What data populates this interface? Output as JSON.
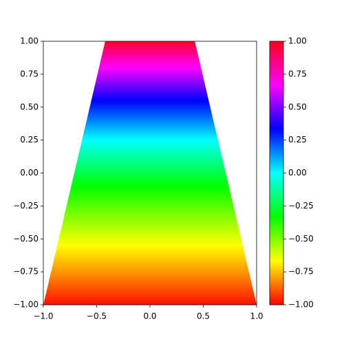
{
  "chart_data": {
    "type": "filled_polygon",
    "colormap": "hsv",
    "polygon": {
      "x": [
        -1,
        -0.42,
        0.42,
        1
      ],
      "y": [
        -1,
        1,
        1,
        -1
      ]
    },
    "gradient": [
      {
        "y": -1,
        "color": "#ff1000"
      },
      {
        "y": -0.55,
        "color": "#ffff00"
      },
      {
        "y": -0.1,
        "color": "#00ff00"
      },
      {
        "y": 0.25,
        "color": "#00ffff"
      },
      {
        "y": 0.55,
        "color": "#0000ff"
      },
      {
        "y": 0.8,
        "color": "#ff00ff"
      },
      {
        "y": 1,
        "color": "#ff0028"
      }
    ],
    "xlim": [
      -1,
      1
    ],
    "ylim": [
      -1,
      1
    ],
    "xticks": [
      {
        "value": -1,
        "label": "−1.0"
      },
      {
        "value": -0.5,
        "label": "−0.5"
      },
      {
        "value": 0,
        "label": "0.0"
      },
      {
        "value": 0.5,
        "label": "0.5"
      },
      {
        "value": 1,
        "label": "1.0"
      }
    ],
    "yticks": [
      {
        "value": -1,
        "label": "−1.00"
      },
      {
        "value": -0.75,
        "label": "−0.75"
      },
      {
        "value": -0.5,
        "label": "−0.50"
      },
      {
        "value": -0.25,
        "label": "−0.25"
      },
      {
        "value": 0,
        "label": "0.00"
      },
      {
        "value": 0.25,
        "label": "0.25"
      },
      {
        "value": 0.5,
        "label": "0.50"
      },
      {
        "value": 0.75,
        "label": "0.75"
      },
      {
        "value": 1,
        "label": "1.00"
      }
    ],
    "colorbar": {
      "clim": [
        -1,
        1
      ],
      "colors": [
        "#ff0000",
        "#ffff00",
        "#00ff00",
        "#00ffff",
        "#0000ff",
        "#ff00ff",
        "#ff0018"
      ],
      "ticks": [
        {
          "value": -1,
          "label": "−1.00"
        },
        {
          "value": -0.75,
          "label": "−0.75"
        },
        {
          "value": -0.5,
          "label": "−0.50"
        },
        {
          "value": -0.25,
          "label": "−0.25"
        },
        {
          "value": 0,
          "label": "0.00"
        },
        {
          "value": 0.25,
          "label": "0.25"
        },
        {
          "value": 0.5,
          "label": "0.50"
        },
        {
          "value": 0.75,
          "label": "0.75"
        },
        {
          "value": 1,
          "label": "1.00"
        }
      ]
    }
  }
}
